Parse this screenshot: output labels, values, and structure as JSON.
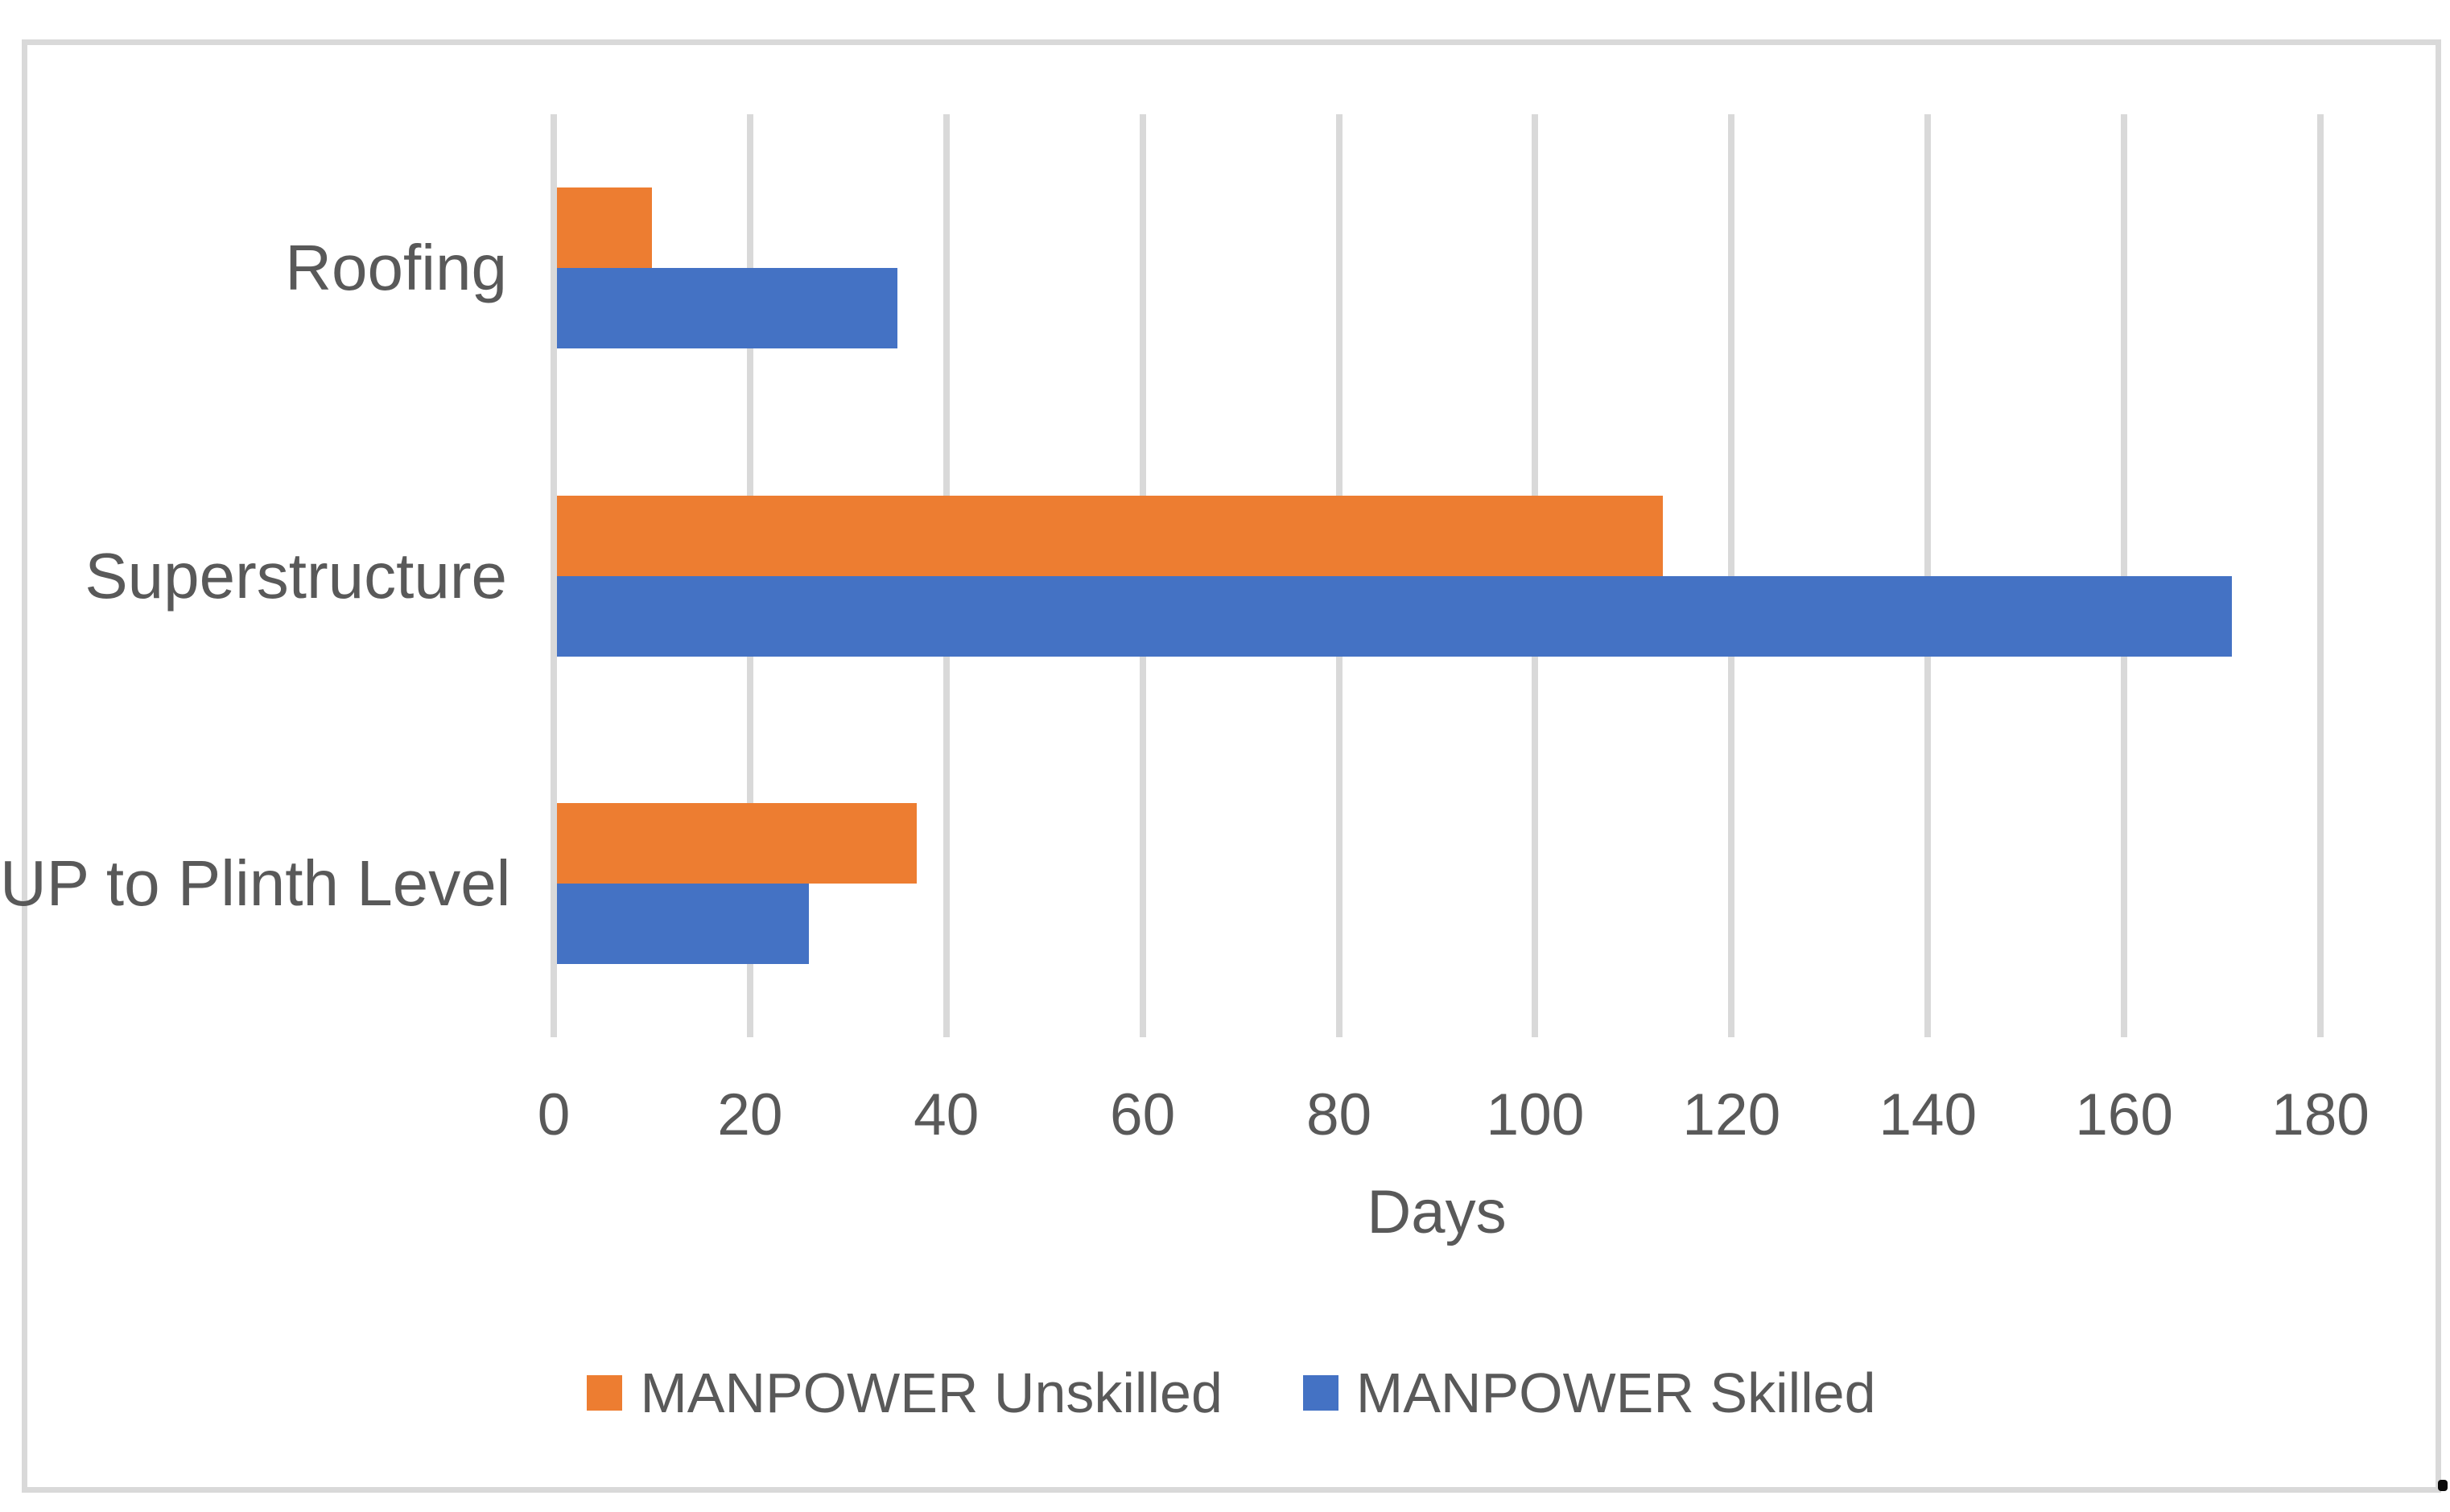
{
  "chart_data": {
    "type": "bar",
    "orientation": "horizontal",
    "title": "",
    "categories": [
      "Roofing",
      "Superstructure",
      "UP to Plinth Level"
    ],
    "series": [
      {
        "name": "MANPOWER Unskilled",
        "color": "#ED7D31",
        "values": [
          10,
          113,
          37
        ]
      },
      {
        "name": "MANPOWER Skilled",
        "color": "#4472C4",
        "values": [
          35,
          171,
          26
        ]
      }
    ],
    "xlabel": "Days",
    "xlim": [
      0,
      180
    ],
    "xticks": [
      0,
      20,
      40,
      60,
      80,
      100,
      120,
      140,
      160,
      180
    ],
    "grid": true,
    "legend_position": "bottom"
  },
  "colors": {
    "text": "#595959",
    "gridline": "#D9D9D9",
    "frame_border": "#D9D9D9",
    "background": "#FFFFFF"
  }
}
